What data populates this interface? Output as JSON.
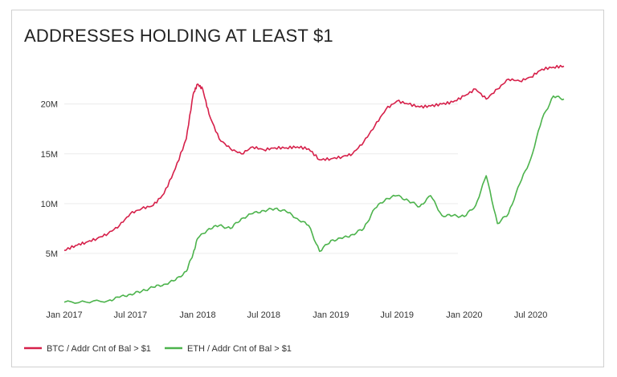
{
  "chart_data": {
    "type": "line",
    "title": "ADDRESSES HOLDING AT LEAST $1",
    "xlabel": "",
    "ylabel": "",
    "x_ticks": [
      "Jan 2017",
      "Jul 2017",
      "Jan 2018",
      "Jul 2018",
      "Jan 2019",
      "Jul 2019",
      "Jan 2020",
      "Jul 2020"
    ],
    "y_ticks": [
      "5M",
      "10M",
      "15M",
      "20M"
    ],
    "y_tick_values": [
      5000000,
      10000000,
      15000000,
      20000000
    ],
    "ylim": [
      0,
      24000000
    ],
    "xlim": [
      "2017-01-01",
      "2020-09-30"
    ],
    "grid": "horizontal",
    "legend_position": "bottom-left",
    "series": [
      {
        "name": "BTC / Addr Cnt of Bal > $1",
        "color": "#d6204a",
        "points": [
          [
            "2017-01-01",
            5300000
          ],
          [
            "2017-02-01",
            5800000
          ],
          [
            "2017-03-01",
            6100000
          ],
          [
            "2017-04-01",
            6500000
          ],
          [
            "2017-05-01",
            7000000
          ],
          [
            "2017-06-01",
            7800000
          ],
          [
            "2017-07-01",
            9000000
          ],
          [
            "2017-08-01",
            9500000
          ],
          [
            "2017-09-01",
            9800000
          ],
          [
            "2017-10-01",
            11000000
          ],
          [
            "2017-11-01",
            13500000
          ],
          [
            "2017-12-01",
            16500000
          ],
          [
            "2017-12-20",
            21000000
          ],
          [
            "2018-01-01",
            22000000
          ],
          [
            "2018-01-15",
            21500000
          ],
          [
            "2018-02-01",
            19000000
          ],
          [
            "2018-03-01",
            16500000
          ],
          [
            "2018-04-01",
            15500000
          ],
          [
            "2018-05-01",
            15000000
          ],
          [
            "2018-06-01",
            15700000
          ],
          [
            "2018-07-01",
            15400000
          ],
          [
            "2018-08-01",
            15600000
          ],
          [
            "2018-09-01",
            15600000
          ],
          [
            "2018-10-01",
            15700000
          ],
          [
            "2018-11-01",
            15500000
          ],
          [
            "2018-12-01",
            14400000
          ],
          [
            "2019-01-01",
            14500000
          ],
          [
            "2019-02-01",
            14700000
          ],
          [
            "2019-03-01",
            15000000
          ],
          [
            "2019-04-01",
            16200000
          ],
          [
            "2019-05-01",
            17800000
          ],
          [
            "2019-06-01",
            19500000
          ],
          [
            "2019-07-01",
            20300000
          ],
          [
            "2019-08-01",
            20000000
          ],
          [
            "2019-09-01",
            19700000
          ],
          [
            "2019-10-01",
            19800000
          ],
          [
            "2019-11-01",
            20000000
          ],
          [
            "2019-12-01",
            20200000
          ],
          [
            "2020-01-01",
            20800000
          ],
          [
            "2020-02-01",
            21500000
          ],
          [
            "2020-03-01",
            20500000
          ],
          [
            "2020-04-01",
            21500000
          ],
          [
            "2020-05-01",
            22500000
          ],
          [
            "2020-06-01",
            22300000
          ],
          [
            "2020-07-01",
            22700000
          ],
          [
            "2020-08-01",
            23500000
          ],
          [
            "2020-09-01",
            23700000
          ],
          [
            "2020-09-30",
            23800000
          ]
        ]
      },
      {
        "name": "ETH / Addr Cnt of Bal > $1",
        "color": "#4cb34c",
        "points": [
          [
            "2017-01-01",
            100000
          ],
          [
            "2017-03-01",
            120000
          ],
          [
            "2017-05-01",
            250000
          ],
          [
            "2017-06-01",
            600000
          ],
          [
            "2017-07-01",
            900000
          ],
          [
            "2017-08-01",
            1200000
          ],
          [
            "2017-09-01",
            1600000
          ],
          [
            "2017-10-01",
            1900000
          ],
          [
            "2017-11-01",
            2300000
          ],
          [
            "2017-12-01",
            3200000
          ],
          [
            "2017-12-20",
            5000000
          ],
          [
            "2018-01-01",
            6500000
          ],
          [
            "2018-02-01",
            7500000
          ],
          [
            "2018-03-01",
            7800000
          ],
          [
            "2018-04-01",
            7500000
          ],
          [
            "2018-05-01",
            8500000
          ],
          [
            "2018-06-01",
            9000000
          ],
          [
            "2018-07-01",
            9300000
          ],
          [
            "2018-08-01",
            9500000
          ],
          [
            "2018-09-01",
            9200000
          ],
          [
            "2018-10-01",
            8500000
          ],
          [
            "2018-11-01",
            7800000
          ],
          [
            "2018-12-01",
            5200000
          ],
          [
            "2019-01-01",
            6300000
          ],
          [
            "2019-02-01",
            6500000
          ],
          [
            "2019-03-01",
            6900000
          ],
          [
            "2019-04-01",
            7500000
          ],
          [
            "2019-05-01",
            9500000
          ],
          [
            "2019-06-01",
            10500000
          ],
          [
            "2019-07-01",
            10800000
          ],
          [
            "2019-08-01",
            10300000
          ],
          [
            "2019-09-01",
            9700000
          ],
          [
            "2019-10-01",
            10800000
          ],
          [
            "2019-11-01",
            8800000
          ],
          [
            "2019-12-01",
            8800000
          ],
          [
            "2020-01-01",
            8700000
          ],
          [
            "2020-02-01",
            9800000
          ],
          [
            "2020-03-01",
            12800000
          ],
          [
            "2020-04-01",
            8000000
          ],
          [
            "2020-05-01",
            9000000
          ],
          [
            "2020-06-01",
            12000000
          ],
          [
            "2020-07-01",
            14500000
          ],
          [
            "2020-08-01",
            18500000
          ],
          [
            "2020-09-01",
            20800000
          ],
          [
            "2020-09-30",
            20500000
          ]
        ]
      }
    ]
  }
}
